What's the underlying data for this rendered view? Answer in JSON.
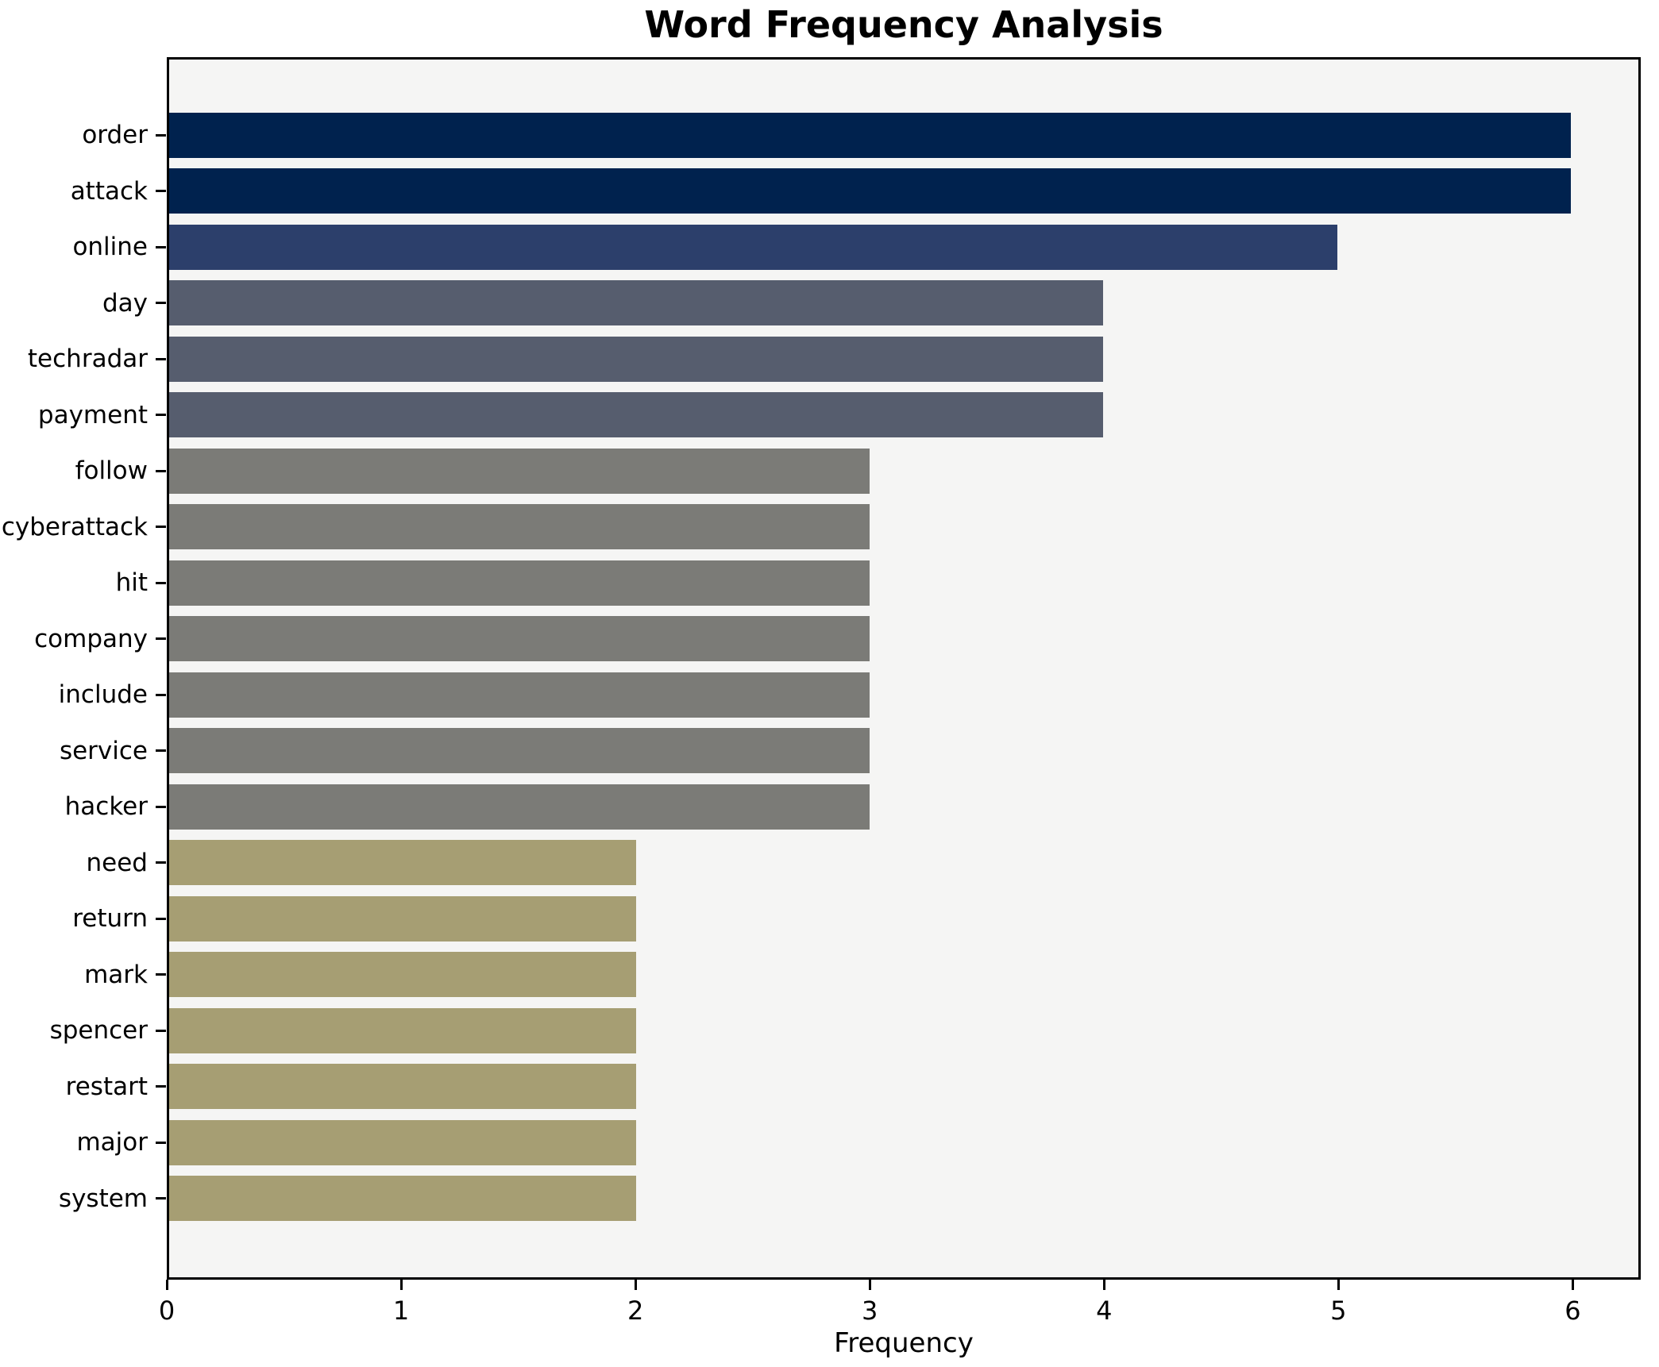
{
  "chart_data": {
    "type": "bar",
    "orientation": "horizontal",
    "title": "Word Frequency Analysis",
    "xlabel": "Frequency",
    "ylabel": "",
    "categories": [
      "order",
      "attack",
      "online",
      "day",
      "techradar",
      "payment",
      "follow",
      "cyberattack",
      "hit",
      "company",
      "include",
      "service",
      "hacker",
      "need",
      "return",
      "mark",
      "spencer",
      "restart",
      "major",
      "system"
    ],
    "values": [
      6,
      6,
      5,
      4,
      4,
      4,
      3,
      3,
      3,
      3,
      3,
      3,
      3,
      2,
      2,
      2,
      2,
      2,
      2,
      2
    ],
    "bar_colors": [
      "#00224e",
      "#00224e",
      "#2c3f6b",
      "#565d6e",
      "#565d6e",
      "#565d6e",
      "#7b7b77",
      "#7b7b77",
      "#7b7b77",
      "#7b7b77",
      "#7b7b77",
      "#7b7b77",
      "#7b7b77",
      "#a69e73",
      "#a69e73",
      "#a69e73",
      "#a69e73",
      "#a69e73",
      "#a69e73",
      "#a69e73"
    ],
    "xlim": [
      0,
      6.29
    ],
    "x_ticks": [
      0,
      1,
      2,
      3,
      4,
      5,
      6
    ],
    "grid": false,
    "legend": null,
    "plot_bg": "#f5f5f4",
    "fig_bg": "#ffffff",
    "axis_color": "#000000"
  }
}
